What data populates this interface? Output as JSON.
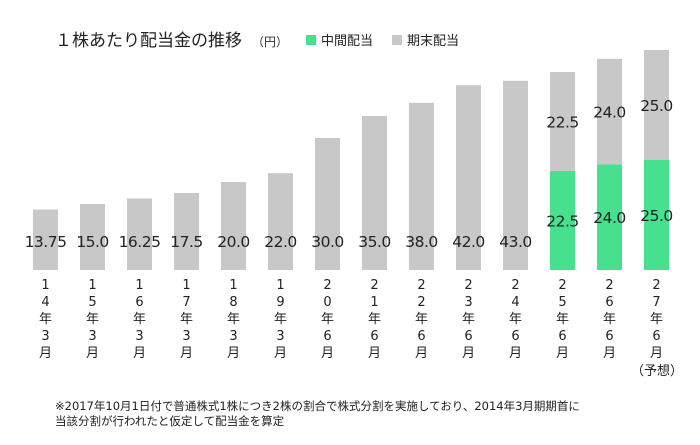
{
  "chart_data": {
    "type": "bar",
    "stacked": true,
    "title": "１株あたり配当金の推移",
    "unit": "（円）",
    "colors": {
      "interim": "#46e08f",
      "yearend": "#c8c8c8"
    },
    "legend": [
      {
        "name": "中間配当",
        "color": "#46e08f"
      },
      {
        "name": "期末配当",
        "color": "#c8c8c8"
      }
    ],
    "categories": [
      "14年3月",
      "15年3月",
      "16年3月",
      "17年3月",
      "18年3月",
      "19年3月",
      "20年6月",
      "21年6月",
      "22年6月",
      "23年6月",
      "24年6月",
      "25年6月",
      "26年6月",
      "27年6月"
    ],
    "forecast_label": "（予想）",
    "series": [
      {
        "name": "中間配当",
        "values": [
          0,
          0,
          0,
          0,
          0,
          0,
          0,
          0,
          0,
          0,
          0,
          22.5,
          24.0,
          25.0
        ],
        "labels": [
          "",
          "",
          "",
          "",
          "",
          "",
          "",
          "",
          "",
          "",
          "",
          "22.5",
          "24.0",
          "25.0"
        ]
      },
      {
        "name": "期末配当",
        "values": [
          13.75,
          15.0,
          16.25,
          17.5,
          20.0,
          22.0,
          30.0,
          35.0,
          38.0,
          42.0,
          43.0,
          22.5,
          24.0,
          25.0
        ],
        "labels": [
          "13.75",
          "15.0",
          "16.25",
          "17.5",
          "20.0",
          "22.0",
          "30.0",
          "35.0",
          "38.0",
          "42.0",
          "43.0",
          "22.5",
          "24.0",
          "25.0"
        ]
      }
    ],
    "ylim": [
      0,
      50
    ]
  },
  "footnote": {
    "line1": "※2017年10月1日付で普通株式1株につき2株の割合で株式分割を実施しており、2014年3月期期首に",
    "line2": "当該分割が行われたと仮定して配当金を算定"
  }
}
